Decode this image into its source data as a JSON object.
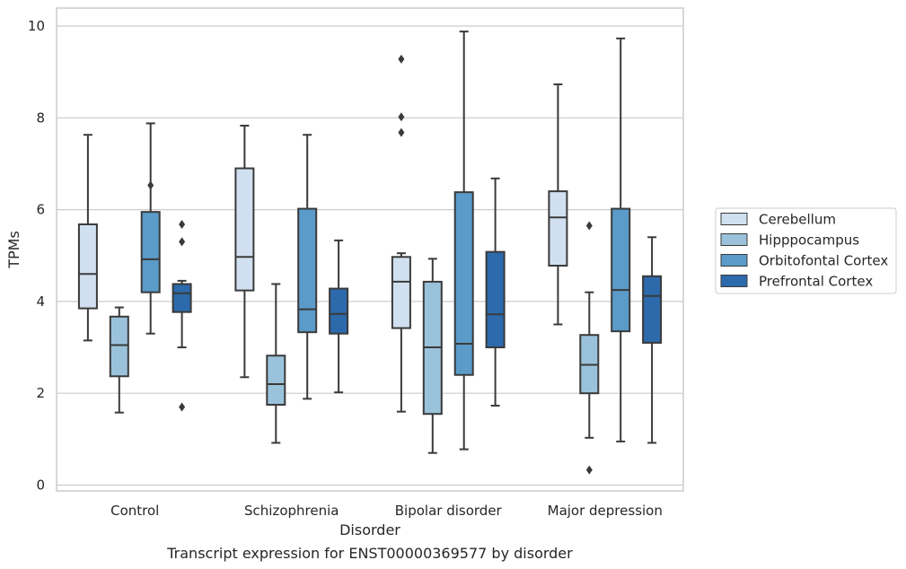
{
  "chart_data": {
    "type": "box",
    "xlabel": "Disorder",
    "ylabel": "TPMs",
    "caption": "Transcript expression for ENST00000369577 by disorder",
    "ylim": [
      -0.15,
      10.4
    ],
    "yticks": [
      0,
      2,
      4,
      6,
      8,
      10
    ],
    "grid": "horizontal",
    "legend_position": "right",
    "categories": [
      "Control",
      "Schizophrenia",
      "Bipolar disorder",
      "Major depression"
    ],
    "series": [
      {
        "name": "Cerebellum",
        "color": "#d1e0f0",
        "boxes": [
          {
            "whislo": 3.15,
            "q1": 3.85,
            "med": 4.6,
            "q3": 5.68,
            "whishi": 7.63,
            "fliers": []
          },
          {
            "whislo": 2.35,
            "q1": 4.24,
            "med": 4.97,
            "q3": 6.9,
            "whishi": 7.83,
            "fliers": []
          },
          {
            "whislo": 1.6,
            "q1": 3.42,
            "med": 4.43,
            "q3": 4.97,
            "whishi": 5.05,
            "fliers": [
              9.28,
              8.02,
              7.68
            ]
          },
          {
            "whislo": 3.5,
            "q1": 4.78,
            "med": 5.83,
            "q3": 6.4,
            "whishi": 8.73,
            "fliers": []
          }
        ]
      },
      {
        "name": "Hipppocampus",
        "color": "#9bc2db",
        "boxes": [
          {
            "whislo": 1.58,
            "q1": 2.37,
            "med": 3.05,
            "q3": 3.67,
            "whishi": 3.87,
            "fliers": []
          },
          {
            "whislo": 0.92,
            "q1": 1.75,
            "med": 2.2,
            "q3": 2.82,
            "whishi": 4.38,
            "fliers": []
          },
          {
            "whislo": 0.7,
            "q1": 1.55,
            "med": 3.0,
            "q3": 4.43,
            "whishi": 4.93,
            "fliers": []
          },
          {
            "whislo": 1.03,
            "q1": 2.0,
            "med": 2.62,
            "q3": 3.27,
            "whishi": 4.2,
            "fliers": [
              0.33,
              5.65
            ]
          }
        ]
      },
      {
        "name": "Orbitofontal Cortex",
        "color": "#5a9bc9",
        "boxes": [
          {
            "whislo": 3.3,
            "q1": 4.2,
            "med": 4.92,
            "q3": 5.95,
            "whishi": 7.88,
            "fliers": [
              6.53
            ]
          },
          {
            "whislo": 1.88,
            "q1": 3.33,
            "med": 3.83,
            "q3": 6.02,
            "whishi": 7.63,
            "fliers": []
          },
          {
            "whislo": 0.78,
            "q1": 2.4,
            "med": 3.08,
            "q3": 6.38,
            "whishi": 9.88,
            "fliers": []
          },
          {
            "whislo": 0.95,
            "q1": 3.35,
            "med": 4.25,
            "q3": 6.02,
            "whishi": 9.73,
            "fliers": []
          }
        ]
      },
      {
        "name": "Prefrontal Cortex",
        "color": "#2c6aab",
        "boxes": [
          {
            "whislo": 3.0,
            "q1": 3.77,
            "med": 4.18,
            "q3": 4.38,
            "whishi": 4.45,
            "fliers": [
              5.68,
              5.3,
              1.7
            ]
          },
          {
            "whislo": 2.02,
            "q1": 3.3,
            "med": 3.73,
            "q3": 4.28,
            "whishi": 5.33,
            "fliers": []
          },
          {
            "whislo": 1.73,
            "q1": 3.0,
            "med": 3.72,
            "q3": 5.08,
            "whishi": 6.68,
            "fliers": []
          },
          {
            "whislo": 0.92,
            "q1": 3.1,
            "med": 4.12,
            "q3": 4.55,
            "whishi": 5.4,
            "fliers": []
          }
        ]
      }
    ]
  }
}
